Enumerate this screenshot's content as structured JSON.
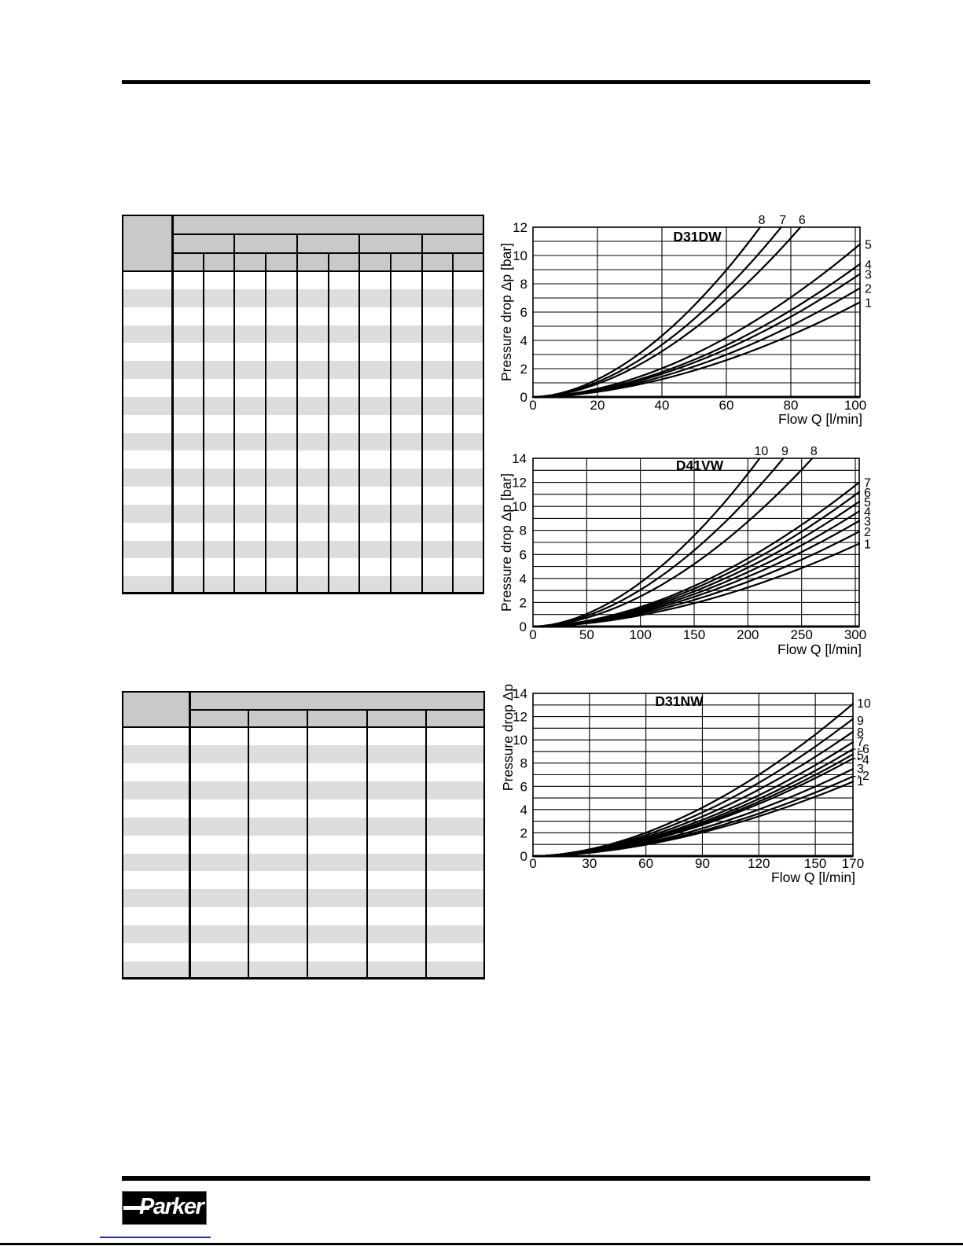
{
  "logo": {
    "text": "Parker"
  },
  "colors": {
    "ink": "#000000",
    "table_header_bg": "#c9c9c9",
    "table_alt_row_bg": "#dddde0",
    "footer_link_line": "#2222cc"
  },
  "tables": [
    {
      "id": "flow-table-1",
      "note": "scanned table, cells contain no legible text",
      "label_column": true,
      "header_levels": 3,
      "group_columns": 5,
      "data_columns": 10,
      "body_rows": 18
    },
    {
      "id": "flow-table-2",
      "note": "scanned table, cells contain no legible text",
      "label_column": true,
      "header_levels": 2,
      "group_columns": 5,
      "data_columns": 5,
      "body_rows": 14
    }
  ],
  "chart_notes": "All curves start at origin (0,0). For curves with exit='top', value = flow [l/min] where the curve reaches the top of the Δp scale. For exit='right', value = Δp [bar] at the right edge of the plot.",
  "chart_data": [
    {
      "type": "line",
      "title": "D31DW",
      "xlabel": "Flow Q [l/min]",
      "ylabel": "Pressure drop Δp [bar]",
      "xlim": [
        0,
        102
      ],
      "ylim": [
        0,
        12
      ],
      "x_ticks": [
        0,
        20,
        40,
        60,
        80,
        100
      ],
      "y_ticks": [
        0,
        2,
        4,
        6,
        8,
        10,
        12
      ],
      "y_grid_step": 1,
      "legend_position": "curve numbers at line ends",
      "curves": [
        {
          "label": "8",
          "exit": "top",
          "value": 70.5
        },
        {
          "label": "7",
          "exit": "top",
          "value": 77
        },
        {
          "label": "6",
          "exit": "top",
          "value": 83
        },
        {
          "label": "5",
          "exit": "right",
          "value": 10.8
        },
        {
          "label": "4",
          "exit": "right",
          "value": 9.4
        },
        {
          "label": "3",
          "exit": "right",
          "value": 8.7
        },
        {
          "label": "2",
          "exit": "right",
          "value": 7.7
        },
        {
          "label": "1",
          "exit": "right",
          "value": 6.7
        }
      ]
    },
    {
      "type": "line",
      "title": "D41VW",
      "xlabel": "Flow Q [l/min]",
      "ylabel": "Pressure drop Δp [bar]",
      "xlim": [
        0,
        304
      ],
      "ylim": [
        0,
        14
      ],
      "x_ticks": [
        0,
        50,
        100,
        150,
        200,
        250,
        300
      ],
      "y_ticks": [
        0,
        2,
        4,
        6,
        8,
        10,
        12,
        14
      ],
      "y_grid_step": 1,
      "legend_position": "curve numbers at line ends",
      "curves": [
        {
          "label": "10",
          "exit": "top",
          "value": 211
        },
        {
          "label": "9",
          "exit": "top",
          "value": 233
        },
        {
          "label": "8",
          "exit": "top",
          "value": 260
        },
        {
          "label": "7",
          "exit": "right",
          "value": 12.0
        },
        {
          "label": "6",
          "exit": "right",
          "value": 11.2
        },
        {
          "label": "5",
          "exit": "right",
          "value": 10.4
        },
        {
          "label": "4",
          "exit": "right",
          "value": 9.6
        },
        {
          "label": "3",
          "exit": "right",
          "value": 8.8
        },
        {
          "label": "2",
          "exit": "right",
          "value": 7.9
        },
        {
          "label": "1",
          "exit": "right",
          "value": 6.9
        }
      ]
    },
    {
      "type": "line",
      "title": "D31NW",
      "xlabel": "Flow Q [l/min]",
      "ylabel": "Pressure drop Δp",
      "xlim": [
        0,
        170
      ],
      "ylim": [
        0,
        14
      ],
      "x_ticks": [
        0,
        30,
        60,
        90,
        120,
        150,
        170
      ],
      "y_ticks": [
        0,
        2,
        4,
        6,
        8,
        10,
        12,
        14
      ],
      "y_grid_step": 1,
      "legend_position": "curve numbers at right edge, dashed leaders for 6/4/2",
      "curves": [
        {
          "label": "10",
          "exit": "right",
          "value": 13.1
        },
        {
          "label": "9",
          "exit": "right",
          "value": 11.8
        },
        {
          "label": "8",
          "exit": "right",
          "value": 10.7
        },
        {
          "label": "7",
          "exit": "right",
          "value": 9.8
        },
        {
          "label": "6",
          "exit": "right",
          "value": 9.2
        },
        {
          "label": "5",
          "exit": "right",
          "value": 8.75
        },
        {
          "label": "4",
          "exit": "right",
          "value": 8.4
        },
        {
          "label": "3",
          "exit": "right",
          "value": 7.5
        },
        {
          "label": "2",
          "exit": "right",
          "value": 6.85
        },
        {
          "label": "1",
          "exit": "right",
          "value": 6.4
        }
      ]
    }
  ]
}
